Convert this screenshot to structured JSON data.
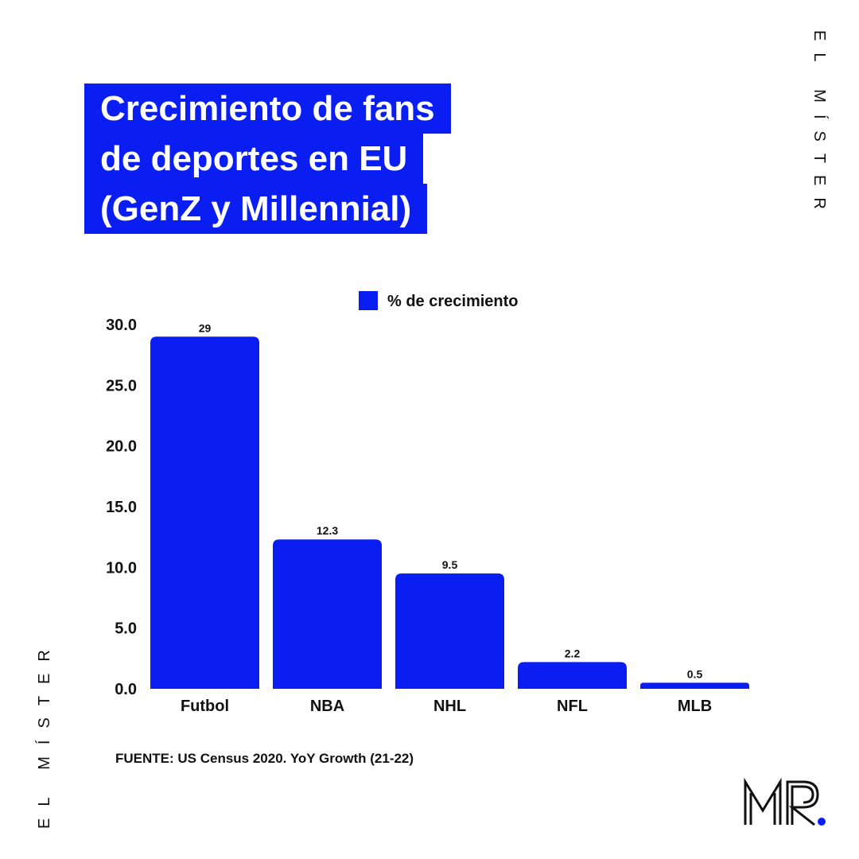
{
  "title_lines": [
    "Crecimiento de fans",
    "de deportes en EU",
    "(GenZ y Millennial)"
  ],
  "brand_vertical": "EL MÍSTER",
  "source": "FUENTE: US Census 2020. YoY Growth (21-22)",
  "logo": {
    "text": "MR",
    "dot_color": "#0a1ef2"
  },
  "colors": {
    "accent": "#0a1ef2",
    "text": "#111111"
  },
  "chart_data": {
    "type": "bar",
    "categories": [
      "Futbol",
      "NBA",
      "NHL",
      "NFL",
      "MLB"
    ],
    "series": [
      {
        "name": "% de crecimiento",
        "values": [
          29,
          12.3,
          9.5,
          2.2,
          0.5
        ]
      }
    ],
    "data_labels": [
      "29",
      "12.3",
      "9.5",
      "2.2",
      "0.5"
    ],
    "yticks": [
      "0.0",
      "5.0",
      "10.0",
      "15.0",
      "20.0",
      "25.0",
      "30.0"
    ],
    "ylim": [
      0,
      30
    ],
    "grid": false,
    "legend": "top-center",
    "bar_color": "#0a1ef2"
  }
}
